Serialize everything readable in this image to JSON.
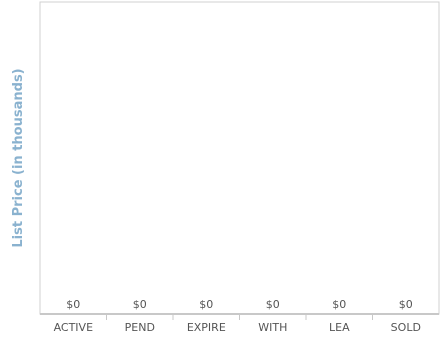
{
  "chart_data": {
    "type": "bar",
    "title": "",
    "xlabel": "",
    "ylabel": "List Price (in thousands)",
    "categories": [
      "ACTIVE",
      "PEND",
      "EXPIRE",
      "WITH",
      "LEA",
      "SOLD"
    ],
    "values": [
      0,
      0,
      0,
      0,
      0,
      0
    ],
    "value_labels": [
      "$0",
      "$0",
      "$0",
      "$0",
      "$0",
      "$0"
    ],
    "grid": false,
    "legend": "none",
    "colors": {
      "frame": "#d0d0d0",
      "axis": "#c8c8c8",
      "ylabel": "#8ab2cf",
      "text": "#555555",
      "bar": "#8ab2cf"
    }
  }
}
